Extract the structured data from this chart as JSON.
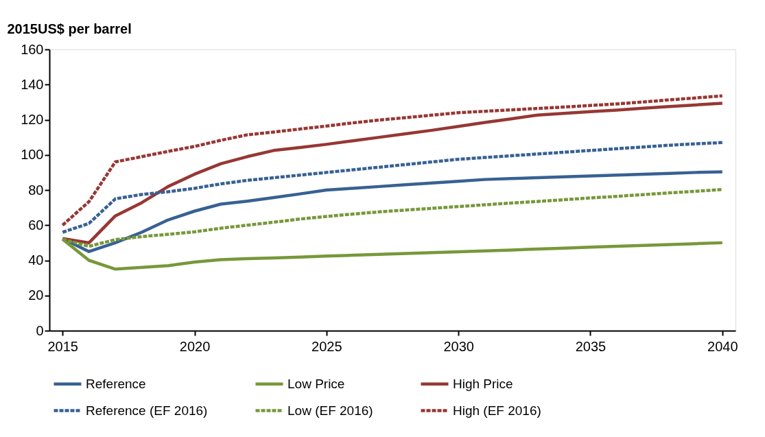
{
  "chart_data": {
    "type": "line",
    "ylabel": "2015US$ per barrel",
    "x": [
      2015,
      2016,
      2017,
      2018,
      2019,
      2020,
      2021,
      2022,
      2023,
      2024,
      2025,
      2026,
      2027,
      2028,
      2029,
      2030,
      2031,
      2032,
      2033,
      2034,
      2035,
      2036,
      2037,
      2038,
      2039,
      2040
    ],
    "xlim": [
      2014.5,
      2040.5
    ],
    "xticks": [
      2015,
      2020,
      2025,
      2030,
      2035,
      2040
    ],
    "ylim": [
      0,
      160
    ],
    "yticks": [
      0,
      20,
      40,
      60,
      80,
      100,
      120,
      140,
      160
    ],
    "grid": false,
    "legend": "bottom",
    "line_style": "solid",
    "series": [
      {
        "name": "Reference",
        "color": "#386193",
        "values": [
          52.4,
          45,
          50,
          56,
          63,
          68,
          72,
          73.7,
          75.7,
          77.8,
          80,
          81,
          82,
          83,
          84,
          85,
          86,
          86.5,
          87,
          87.5,
          88,
          88.5,
          89,
          89.5,
          90,
          90.3
        ]
      },
      {
        "name": "Low Price",
        "color": "#77983a",
        "values": [
          52,
          40,
          35,
          36,
          37,
          39,
          40.4,
          41,
          41.4,
          41.9,
          42.4,
          42.9,
          43.4,
          43.9,
          44.4,
          44.9,
          45.4,
          45.9,
          46.4,
          46.9,
          47.5,
          48,
          48.5,
          49,
          49.5,
          50
        ]
      },
      {
        "name": "High Price",
        "color": "#973734",
        "values": [
          52.4,
          50,
          65.3,
          72.8,
          82,
          89,
          95,
          99,
          102.5,
          104.2,
          106,
          108,
          110,
          112,
          114,
          116.2,
          118.4,
          120.5,
          122.6,
          123.6,
          124.6,
          125.5,
          126.5,
          127.5,
          128.4,
          129.4
        ]
      },
      {
        "name": "Reference (EF 2016)",
        "color": "#386193",
        "line_style": "dashed",
        "values": [
          56,
          61,
          75,
          77.5,
          79,
          81,
          83.5,
          85.5,
          87,
          88.5,
          90,
          91.5,
          93,
          94.5,
          96,
          97.5,
          98.5,
          99.5,
          100.5,
          101.5,
          102.5,
          103.5,
          104.5,
          105.5,
          106.3,
          107
        ]
      },
      {
        "name": "Low (EF 2016)",
        "color": "#77983a",
        "line_style": "dashed",
        "values": [
          52,
          48,
          51.8,
          53.5,
          54.8,
          56.2,
          58.3,
          60,
          61.7,
          63.5,
          65,
          66.3,
          67.6,
          68.6,
          69.6,
          70.6,
          71.6,
          72.6,
          73.5,
          74.5,
          75.5,
          76.4,
          77.4,
          78.4,
          79.3,
          80.3
        ]
      },
      {
        "name": "High (EF 2016)",
        "color": "#973734",
        "line_style": "dashed",
        "values": [
          60,
          73.4,
          96,
          99,
          102,
          104.8,
          108.3,
          111.4,
          113,
          114.7,
          116.4,
          118.2,
          119.8,
          121.2,
          122.6,
          124,
          124.8,
          125.6,
          126.4,
          127.2,
          128.1,
          129,
          130.1,
          131.3,
          132.4,
          133.6
        ]
      }
    ]
  }
}
